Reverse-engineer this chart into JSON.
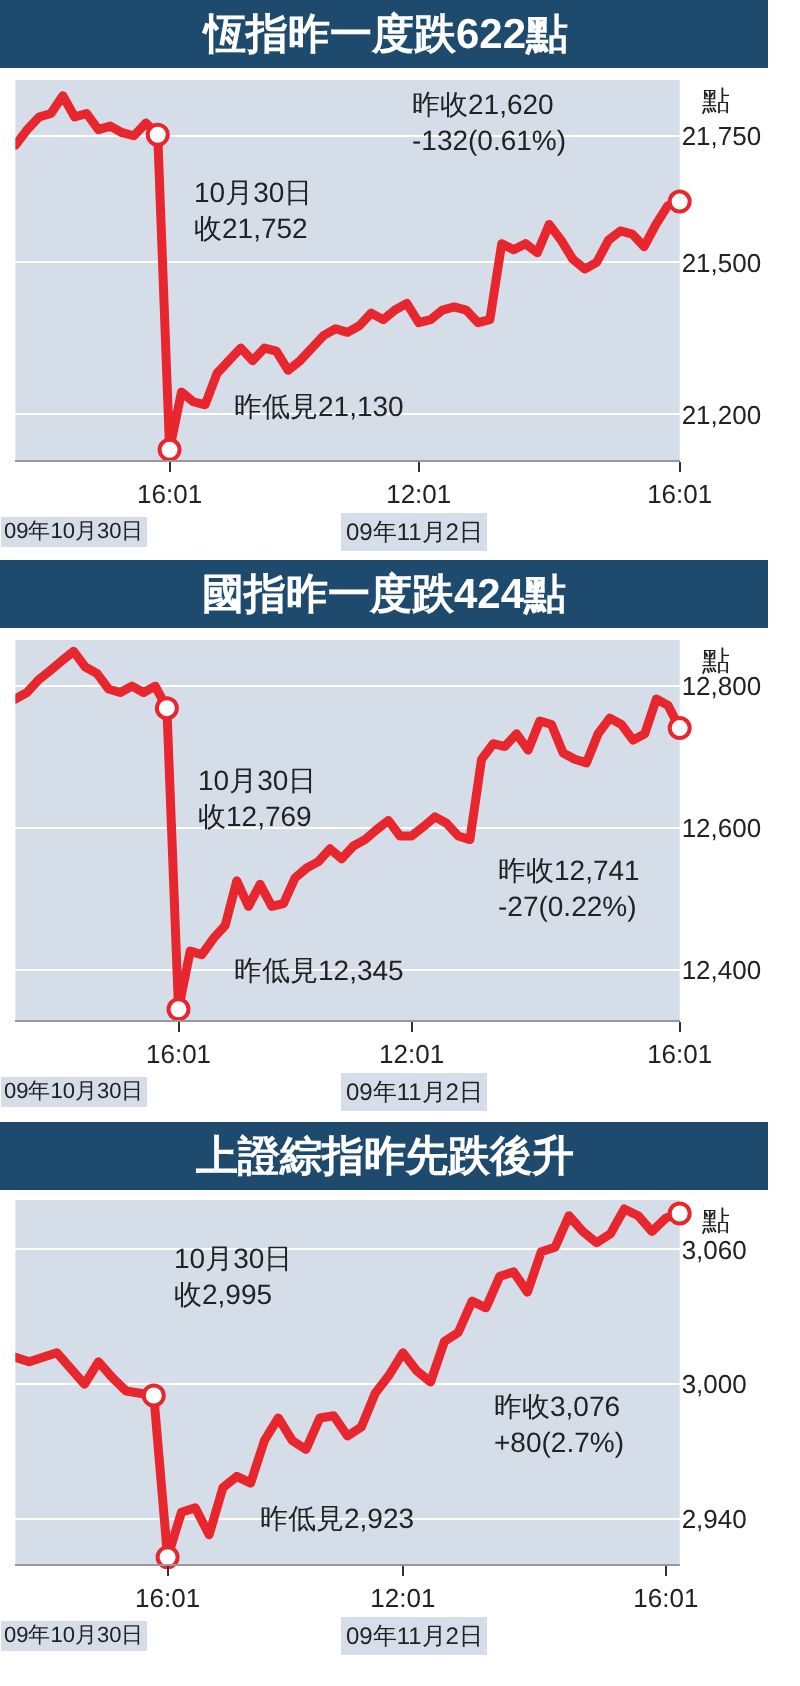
{
  "chart_data": [
    {
      "type": "line",
      "title": "恆指昨一度跌622點",
      "ylabel": "點",
      "grid": "y",
      "line_style": "solid",
      "categories": [
        null,
        null,
        null,
        null,
        null,
        null,
        null,
        null,
        null,
        null,
        null,
        null,
        null,
        "16:01",
        null,
        null,
        null,
        null,
        null,
        null,
        null,
        null,
        null,
        null,
        null,
        null,
        null,
        null,
        null,
        null,
        null,
        null,
        null,
        null,
        "12:01",
        null,
        null,
        null,
        null,
        null,
        null,
        null,
        null,
        null,
        null,
        null,
        null,
        null,
        null,
        null,
        null,
        null,
        null,
        null,
        null,
        null,
        "16:01"
      ],
      "ylim": [
        21110,
        21860
      ],
      "yticks": [
        {
          "value": 21200,
          "label": "21,200"
        },
        {
          "value": 21500,
          "label": "21,500"
        },
        {
          "value": 21750,
          "label": "21,750"
        }
      ],
      "series": [
        {
          "color": "#e8262d",
          "values": [
            21731,
            21762,
            21787,
            21794,
            21829,
            21787,
            21794,
            21762,
            21769,
            21756,
            21750,
            21775,
            21752,
            21130,
            21244,
            21225,
            21219,
            21281,
            21306,
            21331,
            21306,
            21331,
            21325,
            21287,
            21306,
            21331,
            21356,
            21369,
            21362,
            21375,
            21400,
            21387,
            21406,
            21419,
            21381,
            21387,
            21406,
            21412,
            21406,
            21381,
            21387,
            21537,
            21525,
            21537,
            21519,
            21575,
            21544,
            21506,
            21487,
            21500,
            21544,
            21562,
            21556,
            21531,
            21575,
            21612,
            21620
          ]
        },
        {
          "type": "scatter",
          "marker": "circle",
          "color": "#e8262d",
          "values": [
            null,
            null,
            null,
            null,
            null,
            null,
            null,
            null,
            null,
            null,
            null,
            null,
            21752,
            21130,
            null,
            null,
            null,
            null,
            null,
            null,
            null,
            null,
            null,
            null,
            null,
            null,
            null,
            null,
            null,
            null,
            null,
            null,
            null,
            null,
            null,
            null,
            null,
            null,
            null,
            null,
            null,
            null,
            null,
            null,
            null,
            null,
            null,
            null,
            null,
            null,
            null,
            null,
            null,
            null,
            null,
            null,
            21620
          ]
        }
      ],
      "annotations": [
        "09年10月30日",
        "09年11月2日",
        "10月30日收21,752",
        "昨低見21,130",
        "昨收21,620\n-132(0.61%)"
      ]
    },
    {
      "type": "line",
      "title": "國指昨一度跌424點",
      "ylabel": "點",
      "grid": "y",
      "line_style": "solid",
      "categories": [
        null,
        null,
        null,
        null,
        null,
        null,
        null,
        null,
        null,
        null,
        null,
        null,
        null,
        null,
        "16:01",
        null,
        null,
        null,
        null,
        null,
        null,
        null,
        null,
        null,
        null,
        null,
        null,
        null,
        null,
        null,
        null,
        null,
        null,
        null,
        "12:01",
        null,
        null,
        null,
        null,
        null,
        null,
        null,
        null,
        null,
        null,
        null,
        null,
        null,
        null,
        null,
        null,
        null,
        null,
        null,
        null,
        null,
        null,
        "16:01"
      ],
      "ylim": [
        12330,
        12865
      ],
      "yticks": [
        {
          "value": 12400,
          "label": "12,400"
        },
        {
          "value": 12600,
          "label": "12,600"
        },
        {
          "value": 12800,
          "label": "12,800"
        }
      ],
      "series": [
        {
          "color": "#e8262d",
          "values": [
            12782,
            12791,
            12809,
            12822,
            12836,
            12849,
            12827,
            12818,
            12796,
            12791,
            12800,
            12791,
            12800,
            12769,
            12345,
            12427,
            12422,
            12445,
            12463,
            12526,
            12490,
            12521,
            12490,
            12494,
            12530,
            12544,
            12553,
            12571,
            12557,
            12575,
            12584,
            12598,
            12611,
            12589,
            12589,
            12602,
            12616,
            12607,
            12589,
            12584,
            12697,
            12719,
            12715,
            12733,
            12710,
            12751,
            12746,
            12706,
            12697,
            12692,
            12733,
            12755,
            12746,
            12724,
            12733,
            12782,
            12773,
            12741
          ]
        },
        {
          "type": "scatter",
          "marker": "circle",
          "color": "#e8262d",
          "values": [
            null,
            null,
            null,
            null,
            null,
            null,
            null,
            null,
            null,
            null,
            null,
            null,
            null,
            12769,
            12345,
            null,
            null,
            null,
            null,
            null,
            null,
            null,
            null,
            null,
            null,
            null,
            null,
            null,
            null,
            null,
            null,
            null,
            null,
            null,
            null,
            null,
            null,
            null,
            null,
            null,
            null,
            null,
            null,
            null,
            null,
            null,
            null,
            null,
            null,
            null,
            null,
            null,
            null,
            null,
            null,
            null,
            null,
            12741
          ]
        }
      ],
      "annotations": [
        "09年10月30日",
        "09年11月2日",
        "10月30日收12,769",
        "昨低見12,345",
        "昨收12,741\n-27(0.22%)"
      ]
    },
    {
      "type": "line",
      "title": "上證綜指昨先跌後升",
      "ylabel": "點",
      "grid": "y",
      "line_style": "solid",
      "categories": [
        null,
        null,
        null,
        null,
        null,
        null,
        null,
        null,
        null,
        null,
        null,
        "16:01",
        null,
        null,
        null,
        null,
        null,
        null,
        null,
        null,
        null,
        null,
        null,
        null,
        null,
        null,
        null,
        null,
        "12:01",
        null,
        null,
        null,
        null,
        null,
        null,
        null,
        null,
        null,
        null,
        null,
        null,
        null,
        null,
        null,
        null,
        null,
        null,
        "16:01",
        null
      ],
      "ylim": [
        2920,
        3082
      ],
      "yticks": [
        {
          "value": 2940,
          "label": "2,940"
        },
        {
          "value": 3000,
          "label": "3,000"
        },
        {
          "value": 3060,
          "label": "3,060"
        }
      ],
      "series": [
        {
          "color": "#e8262d",
          "values": [
            3012,
            3010,
            3012,
            3014,
            3007,
            3000,
            3010,
            3003,
            2997,
            2996,
            2995,
            2923,
            2943,
            2945,
            2933,
            2954,
            2959,
            2956,
            2975,
            2985,
            2975,
            2971,
            2985,
            2986,
            2977,
            2981,
            2996,
            3004,
            3014,
            3006,
            3001,
            3019,
            3023,
            3037,
            3034,
            3048,
            3050,
            3041,
            3059,
            3061,
            3075,
            3068,
            3063,
            3067,
            3078,
            3075,
            3068,
            3074,
            3076
          ]
        },
        {
          "type": "scatter",
          "marker": "circle",
          "color": "#e8262d",
          "values": [
            null,
            null,
            null,
            null,
            null,
            null,
            null,
            null,
            null,
            null,
            2995,
            2923,
            null,
            null,
            null,
            null,
            null,
            null,
            null,
            null,
            null,
            null,
            null,
            null,
            null,
            null,
            null,
            null,
            null,
            null,
            null,
            null,
            null,
            null,
            null,
            null,
            null,
            null,
            null,
            null,
            null,
            null,
            null,
            null,
            null,
            null,
            null,
            null,
            3076
          ]
        }
      ],
      "annotations": [
        "09年10月30日",
        "09年11月2日",
        "10月30日收2,995",
        "昨低見2,923",
        "昨收3,076\n+80(2.7%)"
      ]
    }
  ]
}
